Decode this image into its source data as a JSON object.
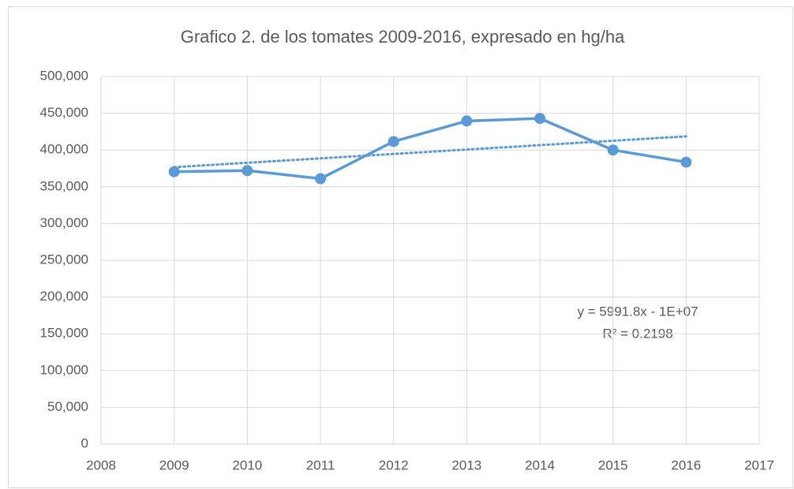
{
  "chart_data": {
    "type": "line",
    "title": "Grafico 2.  de los tomates 2009-2016, expresado en hg/ha",
    "x": [
      2009,
      2010,
      2011,
      2012,
      2013,
      2014,
      2015,
      2016
    ],
    "series": [
      {
        "name": "hg/ha",
        "color": "#5b9bd5",
        "values": [
          370500,
          372000,
          361000,
          411500,
          439500,
          443000,
          400000,
          383500
        ]
      }
    ],
    "trendline": {
      "color": "#5b9bd5",
      "x": [
        2009,
        2016
      ],
      "values": [
        376654,
        418596
      ]
    },
    "annotations": [
      "y = 5991.8x - 1E+07",
      "R² = 0.2198"
    ],
    "xlim": [
      2008,
      2017
    ],
    "xticks": [
      2008,
      2009,
      2010,
      2011,
      2012,
      2013,
      2014,
      2015,
      2016,
      2017
    ],
    "ylim": [
      0,
      500000
    ],
    "yticks": [
      0,
      {
        "value": 50000,
        "label": "50,000"
      },
      {
        "value": 100000,
        "label": "100,000"
      },
      {
        "value": 150000,
        "label": "150,000"
      },
      {
        "value": 200000,
        "label": "200,000"
      },
      {
        "value": 250000,
        "label": "250,000"
      },
      {
        "value": 300000,
        "label": "300,000"
      },
      {
        "value": 350000,
        "label": "350,000"
      },
      {
        "value": 400000,
        "label": "400,000"
      },
      {
        "value": 450000,
        "label": "450,000"
      },
      {
        "value": 500000,
        "label": "500,000"
      }
    ],
    "grid": true
  }
}
